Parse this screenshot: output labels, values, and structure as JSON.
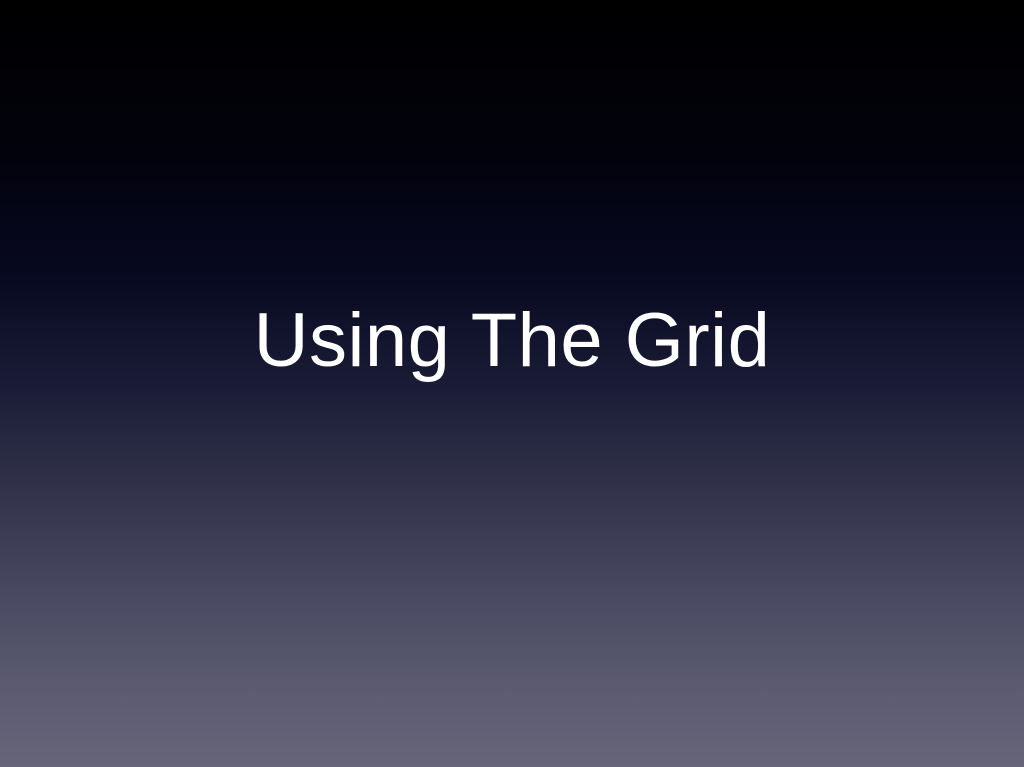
{
  "slide": {
    "title": "Using The Grid"
  },
  "colors": {
    "background_top": "#000000",
    "background_bottom": "#666579",
    "title_text": "#ffffff"
  }
}
